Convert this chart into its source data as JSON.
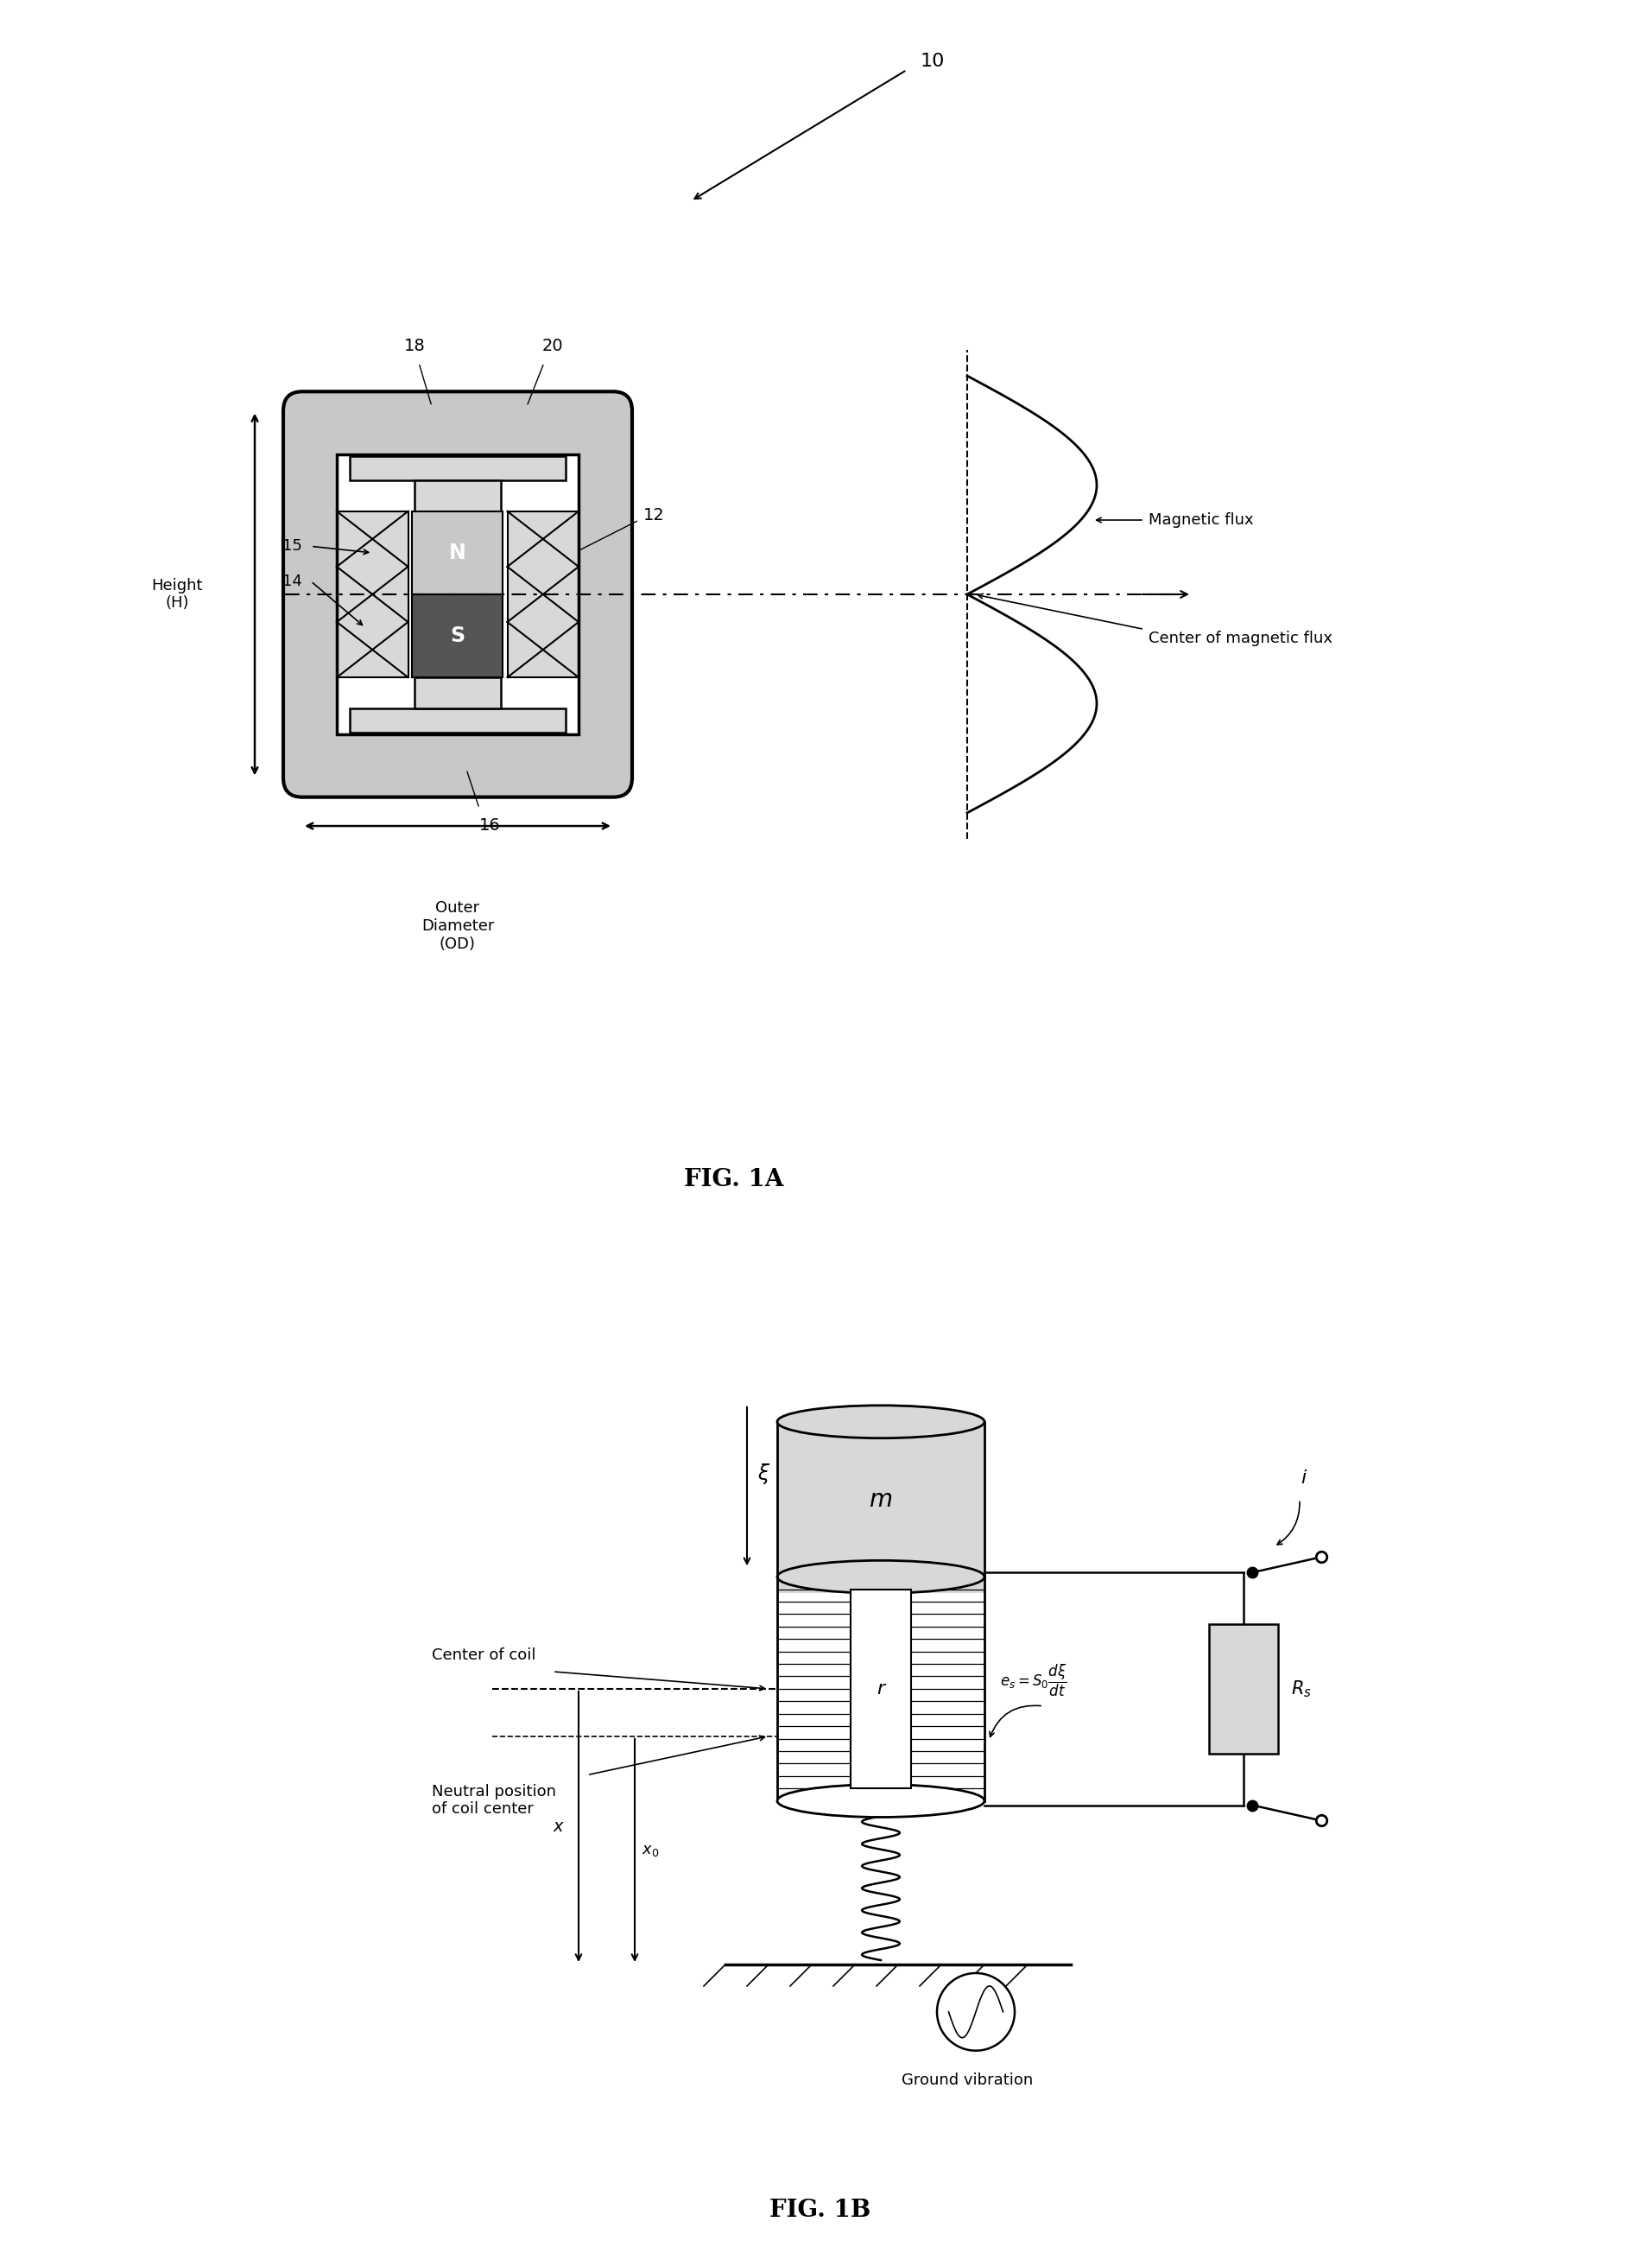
{
  "fig1a_title": "FIG. 1A",
  "fig1b_title": "FIG. 1B",
  "label_10": "10",
  "label_12": "12",
  "label_14": "14",
  "label_15": "15",
  "label_16": "16",
  "label_18": "18",
  "label_20": "20",
  "label_N": "N",
  "label_S": "S",
  "label_height": "Height\n(H)",
  "label_od": "Outer\nDiameter\n(OD)",
  "label_magnetic_flux": "Magnetic flux",
  "label_center_flux": "Center of magnetic flux",
  "label_m": "m",
  "label_r": "r",
  "label_xi": "ξ",
  "label_x": "x",
  "label_x0": "x₀",
  "label_i": "i",
  "label_Rs": "R_s",
  "label_center_coil": "Center of coil",
  "label_neutral": "Neutral position\nof coil center",
  "label_ground": "Ground vibration",
  "bg_color": "#ffffff",
  "dark_gray": "#555555",
  "medium_gray": "#909090",
  "light_gray": "#c8c8c8",
  "lighter_gray": "#d8d8d8",
  "black": "#000000"
}
